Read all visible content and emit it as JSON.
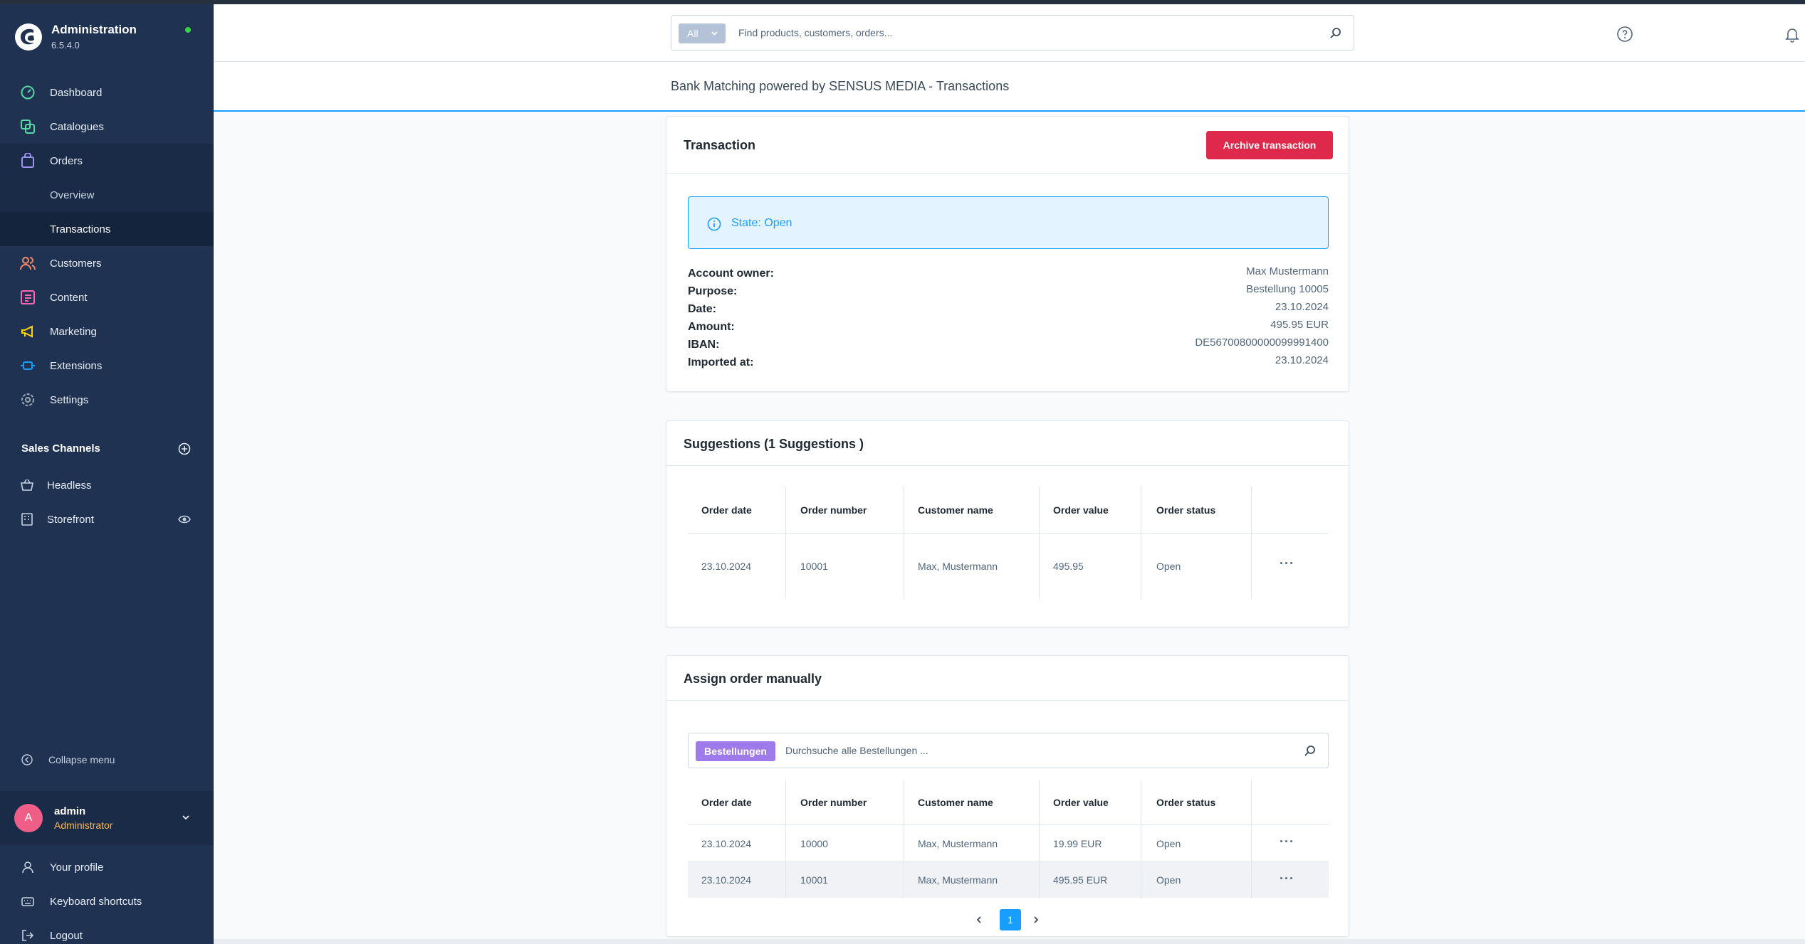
{
  "app": {
    "name": "Administration",
    "version": "6.5.4.0"
  },
  "sidebar": {
    "items": [
      {
        "label": "Dashboard",
        "icon": "dashboard-icon",
        "color": "#57d9a3"
      },
      {
        "label": "Catalogues",
        "icon": "catalogues-icon",
        "color": "#57d9a3"
      },
      {
        "label": "Orders",
        "icon": "orders-icon",
        "color": "#a092f0"
      },
      {
        "label": "Customers",
        "icon": "customers-icon",
        "color": "#f88962"
      },
      {
        "label": "Content",
        "icon": "content-icon",
        "color": "#ff68b4"
      },
      {
        "label": "Marketing",
        "icon": "marketing-icon",
        "color": "#ffd700"
      },
      {
        "label": "Extensions",
        "icon": "extensions-icon",
        "color": "#189eff"
      },
      {
        "label": "Settings",
        "icon": "settings-icon",
        "color": "#9aa8b5"
      }
    ],
    "orders_sub": [
      "Overview",
      "Transactions"
    ],
    "sales_channels_title": "Sales Channels",
    "sales_channels": [
      "Headless",
      "Storefront"
    ],
    "collapse_label": "Collapse menu",
    "user": {
      "initial": "A",
      "name": "admin",
      "role": "Administrator"
    },
    "footer": [
      "Your profile",
      "Keyboard shortcuts",
      "Logout"
    ]
  },
  "header": {
    "search_scope": "All",
    "search_placeholder": "Find products, customers, orders..."
  },
  "page_title": "Bank Matching powered by SENSUS MEDIA - Transactions",
  "transaction": {
    "title": "Transaction",
    "archive_label": "Archive transaction",
    "state": "State: Open",
    "fields": [
      {
        "label": "Account owner:",
        "value": "Max Mustermann"
      },
      {
        "label": "Purpose:",
        "value": "Bestellung 10005"
      },
      {
        "label": "Date:",
        "value": "23.10.2024"
      },
      {
        "label": "Amount:",
        "value": "495.95 EUR"
      },
      {
        "label": "IBAN:",
        "value": "DE56700800000099991400"
      },
      {
        "label": "Imported at:",
        "value": "23.10.2024"
      }
    ]
  },
  "suggestions": {
    "title": "Suggestions (1 Suggestions )",
    "columns": [
      "Order date",
      "Order number",
      "Customer name",
      "Order value",
      "Order status"
    ],
    "rows": [
      [
        "23.10.2024",
        "10001",
        "Max, Mustermann",
        "495.95",
        "Open"
      ]
    ]
  },
  "manual": {
    "title": "Assign order manually",
    "search_tag": "Bestellungen",
    "search_placeholder": "Durchsuche alle Bestellungen ...",
    "columns": [
      "Order date",
      "Order number",
      "Customer name",
      "Order value",
      "Order status"
    ],
    "rows": [
      [
        "23.10.2024",
        "10000",
        "Max, Mustermann",
        "19.99 EUR",
        "Open"
      ],
      [
        "23.10.2024",
        "10001",
        "Max, Mustermann",
        "495.95 EUR",
        "Open"
      ]
    ],
    "current_page": "1"
  },
  "colors": {
    "sidebar": "#1f3251",
    "accent": "#189eff",
    "danger": "#de294c",
    "tag": "#9f7aea"
  }
}
